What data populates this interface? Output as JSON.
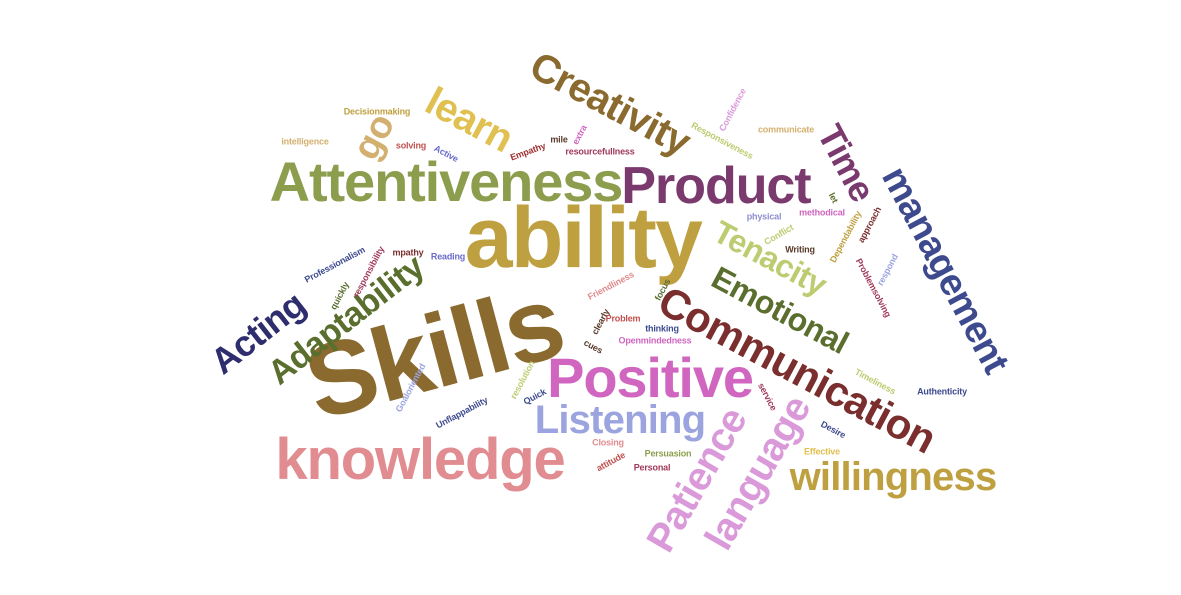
{
  "word_cloud": {
    "words": [
      {
        "text": "Skills",
        "color": "#8A6A2E"
      },
      {
        "text": "ability",
        "color": "#BFA040"
      },
      {
        "text": "Attentiveness",
        "color": "#8C9E4E"
      },
      {
        "text": "Product",
        "color": "#7A3A6E"
      },
      {
        "text": "knowledge",
        "color": "#E08C90"
      },
      {
        "text": "Positive",
        "color": "#D066C0"
      },
      {
        "text": "Communication",
        "color": "#7A2E2E"
      },
      {
        "text": "management",
        "color": "#3E4A8E"
      },
      {
        "text": "Creativity",
        "color": "#8A6A2E"
      },
      {
        "text": "Listening",
        "color": "#9CA4E0"
      },
      {
        "text": "willingness",
        "color": "#BFA040"
      },
      {
        "text": "Patience",
        "color": "#DA9ADA"
      },
      {
        "text": "language",
        "color": "#DA9ADA"
      },
      {
        "text": "Adaptability",
        "color": "#5A6E2E"
      },
      {
        "text": "Acting",
        "color": "#2E2E6E"
      },
      {
        "text": "Tenacity",
        "color": "#BCCC70"
      },
      {
        "text": "Emotional",
        "color": "#5A6E2E"
      },
      {
        "text": "Time",
        "color": "#7A3A6E"
      },
      {
        "text": "learn",
        "color": "#E0C050"
      },
      {
        "text": "go",
        "color": "#D4B070"
      },
      {
        "text": "Decisionmaking",
        "color": "#BFA040"
      },
      {
        "text": "intelligence",
        "color": "#D4B070"
      },
      {
        "text": "solving",
        "color": "#C05050"
      },
      {
        "text": "Active",
        "color": "#6A6ACA"
      },
      {
        "text": "Empathy",
        "color": "#A03030"
      },
      {
        "text": "mile",
        "color": "#5A3A2A"
      },
      {
        "text": "extra",
        "color": "#D066C0"
      },
      {
        "text": "resourcefullness",
        "color": "#A03A5A"
      },
      {
        "text": "Responsiveness",
        "color": "#BCCC70"
      },
      {
        "text": "Confidence",
        "color": "#DA9ADA"
      },
      {
        "text": "communicate",
        "color": "#D4B070"
      },
      {
        "text": "let",
        "color": "#5A6E2E"
      },
      {
        "text": "physical",
        "color": "#8E8ED0"
      },
      {
        "text": "methodical",
        "color": "#D066C0"
      },
      {
        "text": "approach",
        "color": "#7A2E2E"
      },
      {
        "text": "Dependability",
        "color": "#BFA040"
      },
      {
        "text": "Conflict",
        "color": "#BCCC70"
      },
      {
        "text": "Writing",
        "color": "#5A3A2A"
      },
      {
        "text": "Problemsolving",
        "color": "#A03A5A"
      },
      {
        "text": "respond",
        "color": "#9CA4E0"
      },
      {
        "text": "Professionalism",
        "color": "#3E4A8E"
      },
      {
        "text": "responsibility",
        "color": "#A03A5A"
      },
      {
        "text": "mpathy",
        "color": "#7A2E2E"
      },
      {
        "text": "Reading",
        "color": "#6A6ACA"
      },
      {
        "text": "quickly",
        "color": "#5A6E2E"
      },
      {
        "text": "Friendliness",
        "color": "#E08C90"
      },
      {
        "text": "focus",
        "color": "#5A6E2E"
      },
      {
        "text": "clearly",
        "color": "#5A3A2A"
      },
      {
        "text": "Problem",
        "color": "#C05050"
      },
      {
        "text": "thinking",
        "color": "#3E4A8E"
      },
      {
        "text": "cues",
        "color": "#5A3A2A"
      },
      {
        "text": "Openmindedness",
        "color": "#D066C0"
      },
      {
        "text": "Goaloriented",
        "color": "#9CA4E0"
      },
      {
        "text": "Unflappability",
        "color": "#3E4A8E"
      },
      {
        "text": "resolution",
        "color": "#BCCC70"
      },
      {
        "text": "Quick",
        "color": "#3E4A8E"
      },
      {
        "text": "Timeliness",
        "color": "#BCCC70"
      },
      {
        "text": "Authenticity",
        "color": "#3E4A8E"
      },
      {
        "text": "service",
        "color": "#A03A5A"
      },
      {
        "text": "Desire",
        "color": "#3E4A8E"
      },
      {
        "text": "Effective",
        "color": "#E0C050"
      },
      {
        "text": "Closing",
        "color": "#E08C90"
      },
      {
        "text": "Persuasion",
        "color": "#8C9E4E"
      },
      {
        "text": "attitude",
        "color": "#C05050"
      },
      {
        "text": "Personal",
        "color": "#A03A5A"
      }
    ]
  }
}
